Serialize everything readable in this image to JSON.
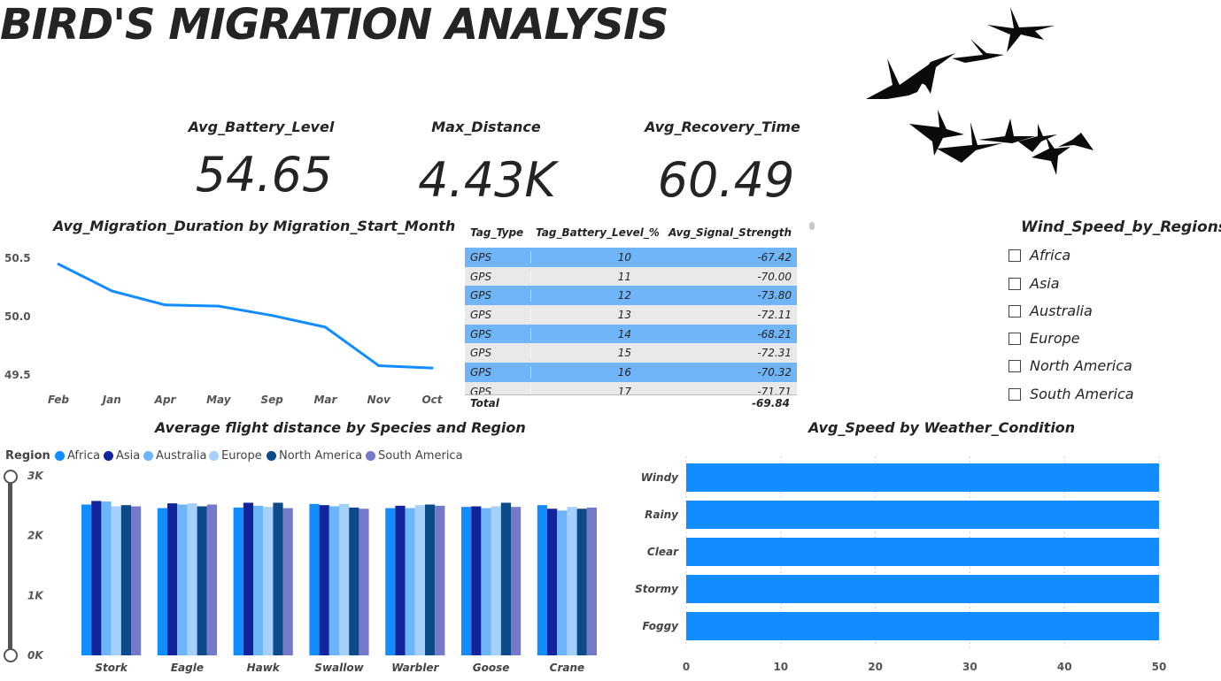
{
  "title": "BIRD'S MIGRATION ANALYSIS",
  "kpis": [
    {
      "label": "Avg_Battery_Level",
      "value": "54.65"
    },
    {
      "label": "Max_Distance",
      "value": "4.43K"
    },
    {
      "label": "Avg_Recovery_Time",
      "value": "60.49"
    }
  ],
  "colors": {
    "africa": "#118dff",
    "asia": "#12239e",
    "australia": "#6cb5f8",
    "europe": "#a5d0fb",
    "north_america": "#0c4a8a",
    "south_america": "#7479c9",
    "table_highlight": "#6fb5f7",
    "line": "#118dff",
    "bar": "#118dff"
  },
  "table": {
    "headers": [
      "Tag_Type",
      "Tag_Battery_Level_%",
      "Avg_Signal_Strength"
    ],
    "rows": [
      [
        "GPS",
        "10",
        "-67.42"
      ],
      [
        "GPS",
        "11",
        "-70.00"
      ],
      [
        "GPS",
        "12",
        "-73.80"
      ],
      [
        "GPS",
        "13",
        "-72.11"
      ],
      [
        "GPS",
        "14",
        "-68.21"
      ],
      [
        "GPS",
        "15",
        "-72.31"
      ],
      [
        "GPS",
        "16",
        "-70.32"
      ],
      [
        "GPS",
        "17",
        "-71.71"
      ]
    ],
    "total_label": "Total",
    "total_value": "-69.84"
  },
  "slicer": {
    "title": "Wind_Speed_by_Regions",
    "items": [
      "Africa",
      "Asia",
      "Australia",
      "Europe",
      "North America",
      "South America"
    ]
  },
  "range_slider": {
    "top_label": "3K",
    "bottom_label": "0K"
  },
  "chart_data": [
    {
      "type": "line",
      "title": "Avg_Migration_Duration by Migration_Start_Month",
      "categories": [
        "Feb",
        "Jan",
        "Apr",
        "May",
        "Sep",
        "Mar",
        "Nov",
        "Oct"
      ],
      "values": [
        50.45,
        50.22,
        50.1,
        50.09,
        50.01,
        49.91,
        49.58,
        49.56
      ],
      "yticks": [
        "50.5",
        "50.0",
        "49.5"
      ],
      "ylim": [
        49.5,
        50.5
      ]
    },
    {
      "type": "bar",
      "title": "Average flight distance by Species and Region",
      "legend_title": "Region",
      "legend": "top-left",
      "categories": [
        "Stork",
        "Eagle",
        "Hawk",
        "Swallow",
        "Warbler",
        "Goose",
        "Crane"
      ],
      "yticks": [
        "3K",
        "2K",
        "1K",
        "0K"
      ],
      "ylim": [
        0,
        3000
      ],
      "series": [
        {
          "name": "Africa",
          "color": "#118dff",
          "values": [
            2520,
            2460,
            2470,
            2530,
            2460,
            2480,
            2510
          ]
        },
        {
          "name": "Asia",
          "color": "#12239e",
          "values": [
            2580,
            2540,
            2550,
            2510,
            2500,
            2490,
            2450
          ]
        },
        {
          "name": "Australia",
          "color": "#6cb5f8",
          "values": [
            2570,
            2520,
            2500,
            2490,
            2460,
            2460,
            2420
          ]
        },
        {
          "name": "Europe",
          "color": "#a5d0fb",
          "values": [
            2490,
            2540,
            2480,
            2530,
            2510,
            2490,
            2480
          ]
        },
        {
          "name": "North America",
          "color": "#0c4a8a",
          "values": [
            2510,
            2490,
            2550,
            2470,
            2520,
            2550,
            2450
          ]
        },
        {
          "name": "South America",
          "color": "#7479c9",
          "values": [
            2490,
            2520,
            2460,
            2450,
            2500,
            2480,
            2470
          ]
        }
      ]
    },
    {
      "type": "bar",
      "orientation": "horizontal",
      "title": "Avg_Speed by Weather_Condition",
      "categories": [
        "Windy",
        "Rainy",
        "Clear",
        "Stormy",
        "Foggy"
      ],
      "values": [
        50,
        50,
        50,
        50,
        50
      ],
      "xticks": [
        "0",
        "10",
        "20",
        "30",
        "40",
        "50"
      ],
      "xlim": [
        0,
        50
      ]
    }
  ]
}
